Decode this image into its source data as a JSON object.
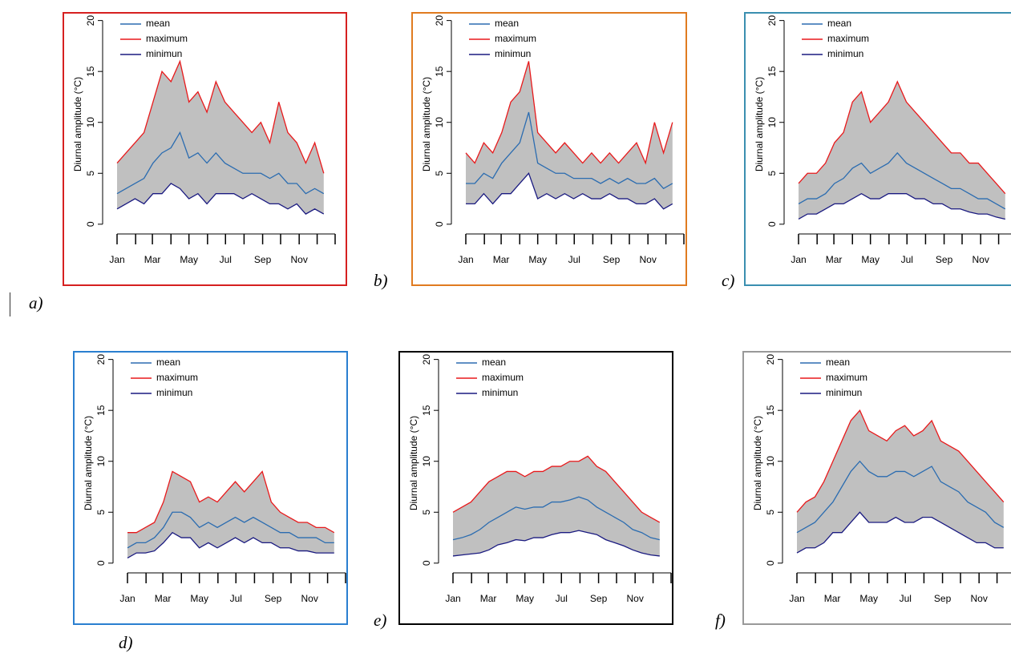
{
  "chart_data": [
    {
      "type": "line",
      "label": "a)",
      "ylabel": "Diurnal amplitude (°C)",
      "frame_color": "#d62020",
      "band_color": "#c0c0c0",
      "xlim": [
        1,
        365
      ],
      "xticks": [
        {
          "value": 1,
          "label": "Jan"
        },
        {
          "value": 60,
          "label": "Mar"
        },
        {
          "value": 121,
          "label": "May"
        },
        {
          "value": 182,
          "label": "Jul"
        },
        {
          "value": 244,
          "label": "Sep"
        },
        {
          "value": 305,
          "label": "Nov"
        }
      ],
      "xminorticks": [
        32,
        91,
        152,
        213,
        274,
        335,
        365
      ],
      "ylim": [
        -0.8,
        20.6
      ],
      "yticks": [
        0,
        5,
        10,
        15,
        20
      ],
      "x": [
        1,
        16,
        31,
        46,
        61,
        76,
        91,
        106,
        121,
        136,
        151,
        166,
        181,
        196,
        211,
        226,
        241,
        256,
        271,
        286,
        301,
        316,
        331,
        346
      ],
      "series": [
        {
          "name": "mean",
          "color": "#2b6cb0",
          "values": [
            3,
            3.5,
            4,
            4.5,
            6,
            7,
            7.5,
            9,
            6.5,
            7,
            6,
            7,
            6,
            5.5,
            5,
            5,
            5,
            4.5,
            5,
            4,
            4,
            3,
            3.5,
            3
          ]
        },
        {
          "name": "maximum",
          "color": "#e8191b",
          "values": [
            6,
            7,
            8,
            9,
            12,
            15,
            14,
            16,
            12,
            13,
            11,
            14,
            12,
            11,
            10,
            9,
            10,
            8,
            12,
            9,
            8,
            6,
            8,
            5
          ]
        },
        {
          "name": "minimun",
          "color": "#1a1a80",
          "values": [
            1.5,
            2,
            2.5,
            2,
            3,
            3,
            4,
            3.5,
            2.5,
            3,
            2,
            3,
            3,
            3,
            2.5,
            3,
            2.5,
            2,
            2,
            1.5,
            2,
            1,
            1.5,
            1
          ]
        }
      ]
    },
    {
      "type": "line",
      "label": "b)",
      "ylabel": "Diurnal amplitude (°C)",
      "frame_color": "#e07b20",
      "band_color": "#c0c0c0",
      "xlim": [
        1,
        365
      ],
      "xticks": [
        {
          "value": 1,
          "label": "Jan"
        },
        {
          "value": 60,
          "label": "Mar"
        },
        {
          "value": 121,
          "label": "May"
        },
        {
          "value": 182,
          "label": "Jul"
        },
        {
          "value": 244,
          "label": "Sep"
        },
        {
          "value": 305,
          "label": "Nov"
        }
      ],
      "xminorticks": [
        32,
        91,
        152,
        213,
        274,
        335,
        365
      ],
      "ylim": [
        -0.8,
        20.6
      ],
      "yticks": [
        0,
        5,
        10,
        15,
        20
      ],
      "x": [
        1,
        16,
        31,
        46,
        61,
        76,
        91,
        106,
        121,
        136,
        151,
        166,
        181,
        196,
        211,
        226,
        241,
        256,
        271,
        286,
        301,
        316,
        331,
        346
      ],
      "series": [
        {
          "name": "mean",
          "color": "#2b6cb0",
          "values": [
            4,
            4,
            5,
            4.5,
            6,
            7,
            8,
            11,
            6,
            5.5,
            5,
            5,
            4.5,
            4.5,
            4.5,
            4,
            4.5,
            4,
            4.5,
            4,
            4,
            4.5,
            3.5,
            4
          ]
        },
        {
          "name": "maximum",
          "color": "#e8191b",
          "values": [
            7,
            6,
            8,
            7,
            9,
            12,
            13,
            16,
            9,
            8,
            7,
            8,
            7,
            6,
            7,
            6,
            7,
            6,
            7,
            8,
            6,
            10,
            7,
            10
          ]
        },
        {
          "name": "minimun",
          "color": "#1a1a80",
          "values": [
            2,
            2,
            3,
            2,
            3,
            3,
            4,
            5,
            2.5,
            3,
            2.5,
            3,
            2.5,
            3,
            2.5,
            2.5,
            3,
            2.5,
            2.5,
            2,
            2,
            2.5,
            1.5,
            2
          ]
        }
      ]
    },
    {
      "type": "line",
      "label": "c)",
      "ylabel": "Diurnal amplitude (°C)",
      "frame_color": "#3a8fb0",
      "band_color": "#c0c0c0",
      "xlim": [
        1,
        365
      ],
      "xticks": [
        {
          "value": 1,
          "label": "Jan"
        },
        {
          "value": 60,
          "label": "Mar"
        },
        {
          "value": 121,
          "label": "May"
        },
        {
          "value": 182,
          "label": "Jul"
        },
        {
          "value": 244,
          "label": "Sep"
        },
        {
          "value": 305,
          "label": "Nov"
        }
      ],
      "xminorticks": [
        32,
        91,
        152,
        213,
        274,
        335,
        365
      ],
      "ylim": [
        -0.8,
        20.6
      ],
      "yticks": [
        0,
        5,
        10,
        15,
        20
      ],
      "x": [
        1,
        16,
        31,
        46,
        61,
        76,
        91,
        106,
        121,
        136,
        151,
        166,
        181,
        196,
        211,
        226,
        241,
        256,
        271,
        286,
        301,
        316,
        331,
        346
      ],
      "series": [
        {
          "name": "mean",
          "color": "#2b6cb0",
          "values": [
            2,
            2.5,
            2.5,
            3,
            4,
            4.5,
            5.5,
            6,
            5,
            5.5,
            6,
            7,
            6,
            5.5,
            5,
            4.5,
            4,
            3.5,
            3.5,
            3,
            2.5,
            2.5,
            2,
            1.5
          ]
        },
        {
          "name": "maximum",
          "color": "#e8191b",
          "values": [
            4,
            5,
            5,
            6,
            8,
            9,
            12,
            13,
            10,
            11,
            12,
            14,
            12,
            11,
            10,
            9,
            8,
            7,
            7,
            6,
            6,
            5,
            4,
            3
          ]
        },
        {
          "name": "minimun",
          "color": "#1a1a80",
          "values": [
            0.5,
            1,
            1,
            1.5,
            2,
            2,
            2.5,
            3,
            2.5,
            2.5,
            3,
            3,
            3,
            2.5,
            2.5,
            2,
            2,
            1.5,
            1.5,
            1.2,
            1,
            1,
            0.7,
            0.5
          ]
        }
      ]
    },
    {
      "type": "line",
      "label": "d)",
      "ylabel": "Diurnal amplitude (°C)",
      "frame_color": "#2a7fd0",
      "band_color": "#c0c0c0",
      "xlim": [
        1,
        365
      ],
      "xticks": [
        {
          "value": 1,
          "label": "Jan"
        },
        {
          "value": 60,
          "label": "Mar"
        },
        {
          "value": 121,
          "label": "May"
        },
        {
          "value": 182,
          "label": "Jul"
        },
        {
          "value": 244,
          "label": "Sep"
        },
        {
          "value": 305,
          "label": "Nov"
        }
      ],
      "xminorticks": [
        32,
        91,
        152,
        213,
        274,
        335,
        365
      ],
      "ylim": [
        -0.8,
        20.6
      ],
      "yticks": [
        0,
        5,
        10,
        15,
        20
      ],
      "x": [
        1,
        16,
        31,
        46,
        61,
        76,
        91,
        106,
        121,
        136,
        151,
        166,
        181,
        196,
        211,
        226,
        241,
        256,
        271,
        286,
        301,
        316,
        331,
        346
      ],
      "series": [
        {
          "name": "mean",
          "color": "#2b6cb0",
          "values": [
            1.5,
            2,
            2,
            2.5,
            3.5,
            5,
            5,
            4.5,
            3.5,
            4,
            3.5,
            4,
            4.5,
            4,
            4.5,
            4,
            3.5,
            3,
            3,
            2.5,
            2.5,
            2.5,
            2,
            2
          ]
        },
        {
          "name": "maximum",
          "color": "#e8191b",
          "values": [
            3,
            3,
            3.5,
            4,
            6,
            9,
            8.5,
            8,
            6,
            6.5,
            6,
            7,
            8,
            7,
            8,
            9,
            6,
            5,
            4.5,
            4,
            4,
            3.5,
            3.5,
            3
          ]
        },
        {
          "name": "minimun",
          "color": "#1a1a80",
          "values": [
            0.5,
            1,
            1,
            1.2,
            2,
            3,
            2.5,
            2.5,
            1.5,
            2,
            1.5,
            2,
            2.5,
            2,
            2.5,
            2,
            2,
            1.5,
            1.5,
            1.2,
            1.2,
            1,
            1,
            1
          ]
        }
      ]
    },
    {
      "type": "line",
      "label": "e)",
      "ylabel": "Diurnal amplitude (°C)",
      "frame_color": "#000000",
      "band_color": "#c0c0c0",
      "xlim": [
        1,
        365
      ],
      "xticks": [
        {
          "value": 1,
          "label": "Jan"
        },
        {
          "value": 60,
          "label": "Mar"
        },
        {
          "value": 121,
          "label": "May"
        },
        {
          "value": 182,
          "label": "Jul"
        },
        {
          "value": 244,
          "label": "Sep"
        },
        {
          "value": 305,
          "label": "Nov"
        }
      ],
      "xminorticks": [
        32,
        91,
        152,
        213,
        274,
        335,
        365
      ],
      "ylim": [
        -0.8,
        20.6
      ],
      "yticks": [
        0,
        5,
        10,
        15,
        20
      ],
      "x": [
        1,
        16,
        31,
        46,
        61,
        76,
        91,
        106,
        121,
        136,
        151,
        166,
        181,
        196,
        211,
        226,
        241,
        256,
        271,
        286,
        301,
        316,
        331,
        346
      ],
      "series": [
        {
          "name": "mean",
          "color": "#2b6cb0",
          "values": [
            2.3,
            2.5,
            2.8,
            3.3,
            4,
            4.5,
            5,
            5.5,
            5.3,
            5.5,
            5.5,
            6,
            6,
            6.2,
            6.5,
            6.2,
            5.5,
            5,
            4.5,
            4,
            3.3,
            3,
            2.5,
            2.3
          ]
        },
        {
          "name": "maximum",
          "color": "#e8191b",
          "values": [
            5,
            5.5,
            6,
            7,
            8,
            8.5,
            9,
            9,
            8.5,
            9,
            9,
            9.5,
            9.5,
            10,
            10,
            10.5,
            9.5,
            9,
            8,
            7,
            6,
            5,
            4.5,
            4
          ]
        },
        {
          "name": "minimun",
          "color": "#1a1a80",
          "values": [
            0.7,
            0.8,
            0.9,
            1,
            1.3,
            1.8,
            2,
            2.3,
            2.2,
            2.5,
            2.5,
            2.8,
            3,
            3,
            3.2,
            3,
            2.8,
            2.3,
            2,
            1.7,
            1.3,
            1,
            0.8,
            0.7
          ]
        }
      ]
    },
    {
      "type": "line",
      "label": "f)",
      "ylabel": "Diurnal amplitude (°C)",
      "frame_color": "#999999",
      "band_color": "#c0c0c0",
      "xlim": [
        1,
        365
      ],
      "xticks": [
        {
          "value": 1,
          "label": "Jan"
        },
        {
          "value": 60,
          "label": "Mar"
        },
        {
          "value": 121,
          "label": "May"
        },
        {
          "value": 182,
          "label": "Jul"
        },
        {
          "value": 244,
          "label": "Sep"
        },
        {
          "value": 305,
          "label": "Nov"
        }
      ],
      "xminorticks": [
        32,
        91,
        152,
        213,
        274,
        335,
        365
      ],
      "ylim": [
        -0.8,
        20.6
      ],
      "yticks": [
        0,
        5,
        10,
        15,
        20
      ],
      "x": [
        1,
        16,
        31,
        46,
        61,
        76,
        91,
        106,
        121,
        136,
        151,
        166,
        181,
        196,
        211,
        226,
        241,
        256,
        271,
        286,
        301,
        316,
        331,
        346
      ],
      "series": [
        {
          "name": "mean",
          "color": "#2b6cb0",
          "values": [
            3,
            3.5,
            4,
            5,
            6,
            7.5,
            9,
            10,
            9,
            8.5,
            8.5,
            9,
            9,
            8.5,
            9,
            9.5,
            8,
            7.5,
            7,
            6,
            5.5,
            5,
            4,
            3.5
          ]
        },
        {
          "name": "maximum",
          "color": "#e8191b",
          "values": [
            5,
            6,
            6.5,
            8,
            10,
            12,
            14,
            15,
            13,
            12.5,
            12,
            13,
            13.5,
            12.5,
            13,
            14,
            12,
            11.5,
            11,
            10,
            9,
            8,
            7,
            6
          ]
        },
        {
          "name": "minimun",
          "color": "#1a1a80",
          "values": [
            1,
            1.5,
            1.5,
            2,
            3,
            3,
            4,
            5,
            4,
            4,
            4,
            4.5,
            4,
            4,
            4.5,
            4.5,
            4,
            3.5,
            3,
            2.5,
            2,
            2,
            1.5,
            1.5
          ]
        }
      ]
    }
  ]
}
